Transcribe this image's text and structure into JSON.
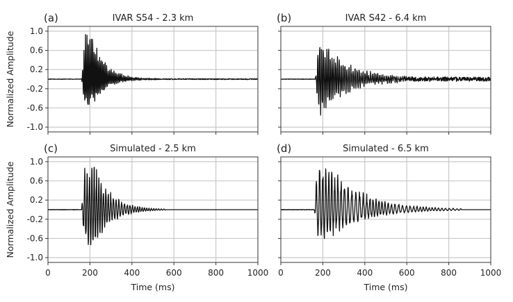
{
  "figure": {
    "ylabel": "Normalized Amplitude",
    "xlabel": "Time (ms)"
  },
  "chart_data": [
    {
      "type": "line",
      "panel_label": "(a)",
      "title": "IVAR S54 - 2.3 km",
      "xlim": [
        0,
        1000
      ],
      "ylim": [
        -1.1,
        1.1
      ],
      "xticks": [
        0,
        200,
        400,
        600,
        800,
        1000
      ],
      "yticks": [
        "1.0",
        "0.6",
        "0.2",
        "-0.2",
        "-0.6",
        "-1.0"
      ],
      "ytick_values": [
        1.0,
        0.6,
        0.2,
        -0.2,
        -0.6,
        -1.0
      ],
      "grid": true,
      "waveform": {
        "onset_ms": 160,
        "peak_ms": 208,
        "decay_ms": 65,
        "end_ms": 1000,
        "period_ms": 7,
        "pos_peak": 1.0,
        "neg_peak": -0.65,
        "coda": 0.02
      }
    },
    {
      "type": "line",
      "panel_label": "(b)",
      "title": "IVAR S42 - 6.4 km",
      "xlim": [
        0,
        1000
      ],
      "ylim": [
        -1.1,
        1.1
      ],
      "xticks": [
        0,
        200,
        400,
        600,
        800,
        1000
      ],
      "yticks": [
        "1.0",
        "0.6",
        "0.2",
        "-0.2",
        "-0.6",
        "-1.0"
      ],
      "ytick_values": [
        1.0,
        0.6,
        0.2,
        -0.2,
        -0.6,
        -1.0
      ],
      "grid": true,
      "waveform": {
        "onset_ms": 165,
        "peak_ms": 185,
        "decay_ms": 120,
        "end_ms": 1000,
        "period_ms": 9,
        "pos_peak": 1.0,
        "neg_peak": -0.85,
        "coda": 0.09
      }
    },
    {
      "type": "line",
      "panel_label": "(c)",
      "title": "Simulated - 2.5 km",
      "xlim": [
        0,
        1000
      ],
      "ylim": [
        -1.1,
        1.1
      ],
      "xticks": [
        0,
        200,
        400,
        600,
        800,
        1000
      ],
      "yticks": [
        "1.0",
        "0.6",
        "0.2",
        "-0.2",
        "-0.6",
        "-1.0"
      ],
      "ytick_values": [
        1.0,
        0.6,
        0.2,
        -0.2,
        -0.6,
        -1.0
      ],
      "grid": true,
      "waveform": {
        "onset_ms": 160,
        "peak_ms": 220,
        "decay_ms": 80,
        "end_ms": 560,
        "period_ms": 12,
        "pos_peak": 1.0,
        "neg_peak": -0.85,
        "coda": 0.0
      }
    },
    {
      "type": "line",
      "panel_label": "(d)",
      "title": "Simulated - 6.5 km",
      "xlim": [
        0,
        1000
      ],
      "ylim": [
        -1.1,
        1.1
      ],
      "xticks": [
        0,
        200,
        400,
        600,
        800,
        1000
      ],
      "yticks": [
        "1.0",
        "0.6",
        "0.2",
        "-0.2",
        "-0.6",
        "-1.0"
      ],
      "ytick_values": [
        1.0,
        0.6,
        0.2,
        -0.2,
        -0.6,
        -1.0
      ],
      "grid": true,
      "waveform": {
        "onset_ms": 160,
        "peak_ms": 220,
        "decay_ms": 170,
        "end_ms": 860,
        "period_ms": 16,
        "pos_peak": 1.0,
        "neg_peak": -0.65,
        "coda": 0.0
      }
    }
  ]
}
